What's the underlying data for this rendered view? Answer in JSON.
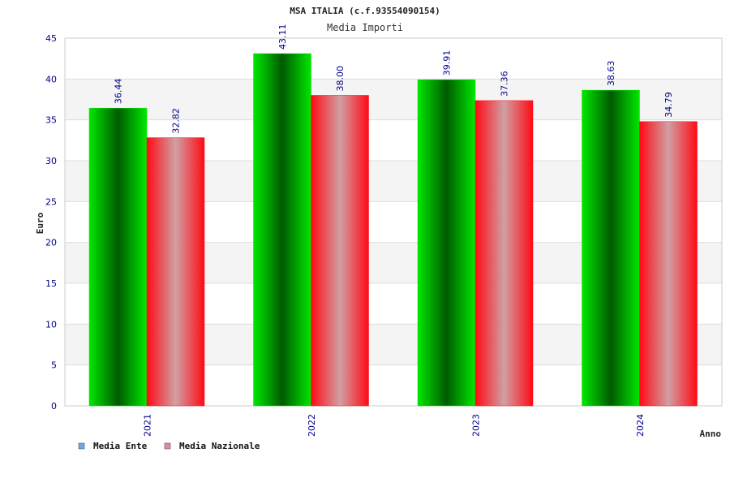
{
  "chart_data": {
    "type": "bar",
    "title": "MSA ITALIA (c.f.93554090154)",
    "subtitle": "Media Importi",
    "xlabel": "Anno",
    "ylabel": "Euro",
    "ylim": [
      0,
      45
    ],
    "ytick_step": 5,
    "grid": true,
    "legend_position": "bottom-left",
    "categories": [
      "2021",
      "2022",
      "2023",
      "2024"
    ],
    "series": [
      {
        "name": "Media Ente",
        "values": [
          36.44,
          43.11,
          39.91,
          38.63
        ],
        "labels": [
          "36.44",
          "43.11",
          "39.91",
          "38.63"
        ],
        "legend_color": "#6fa8e8",
        "colors": [
          "#00e800",
          "#005a00"
        ]
      },
      {
        "name": "Media Nazionale",
        "values": [
          32.82,
          38.0,
          37.36,
          34.79
        ],
        "labels": [
          "32.82",
          "38.00",
          "37.36",
          "34.79"
        ],
        "legend_color": "#e088b0",
        "colors": [
          "#ff0a14",
          "#d0a0a4"
        ]
      }
    ]
  },
  "colors": {
    "axis_text": "#00008b",
    "title_text": "#222222",
    "grid_band": "#f4f4f4",
    "grid_line": "#dddddd"
  }
}
